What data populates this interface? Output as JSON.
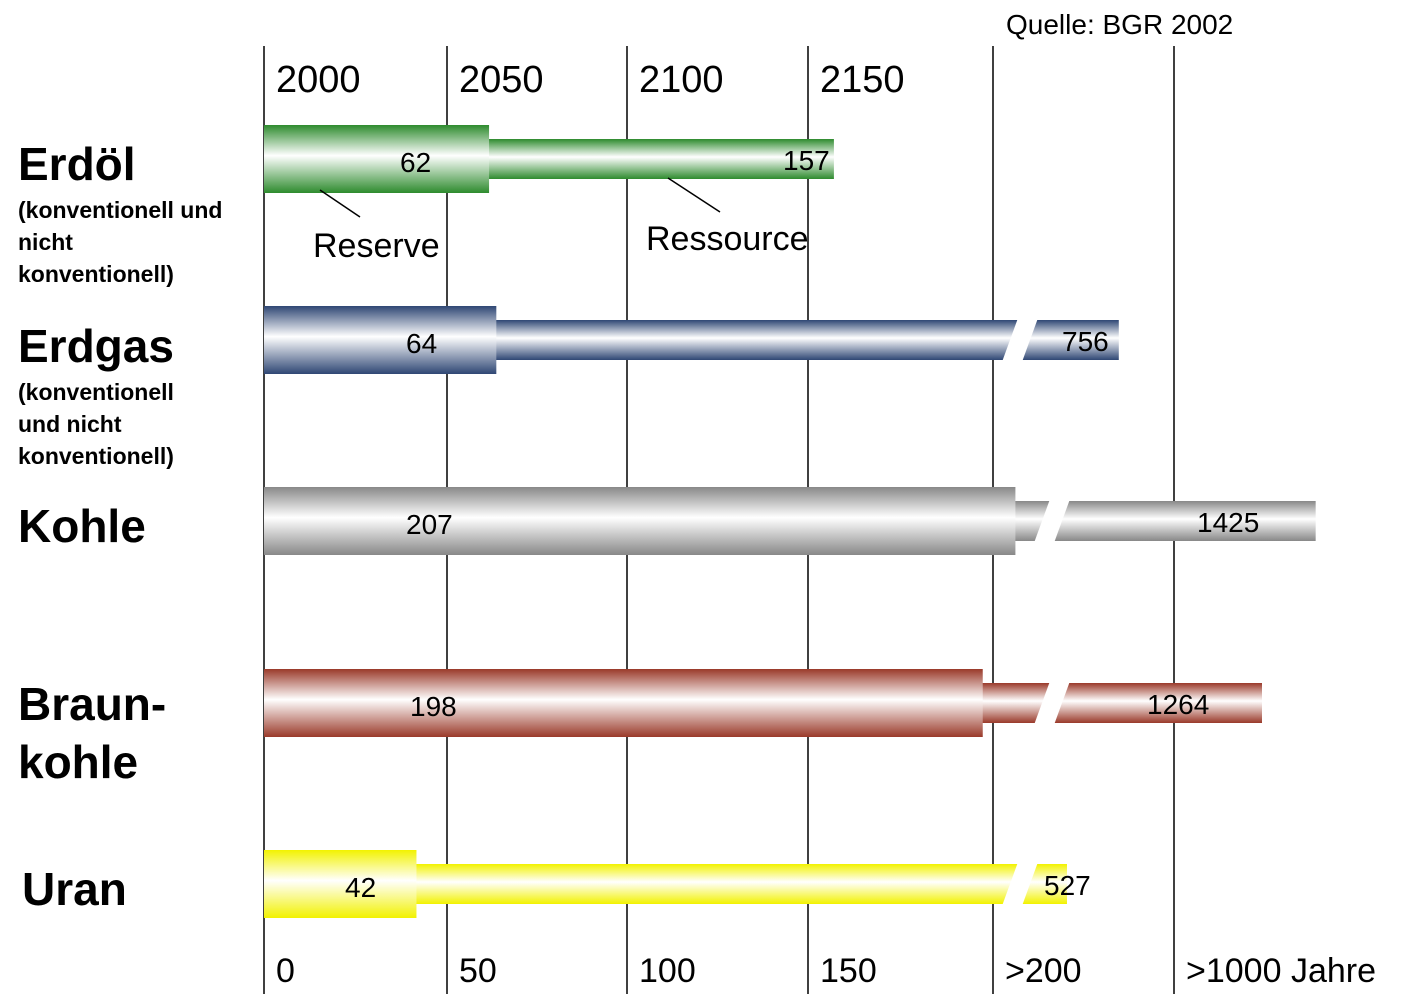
{
  "source": "Quelle: BGR 2002",
  "chart_data": {
    "type": "bar",
    "orientation": "horizontal",
    "top_axis_labels": [
      "2000",
      "2050",
      "2100",
      "2150"
    ],
    "bottom_axis_labels": [
      "0",
      "50",
      "100",
      "150",
      ">200",
      ">1000 Jahre"
    ],
    "categories": [
      {
        "name": "Erdöl",
        "subtitle": [
          "(konventionell und",
          "nicht",
          "konventionell)"
        ],
        "reserve": 62,
        "resource": 157,
        "color": "#2e8b2e"
      },
      {
        "name": "Erdgas",
        "subtitle": [
          "(konventionell",
          "und nicht",
          "konventionell)"
        ],
        "reserve": 64,
        "resource": 756,
        "color": "#2f4774"
      },
      {
        "name": "Kohle",
        "subtitle": [],
        "reserve": 207,
        "resource": 1425,
        "color": "#888888"
      },
      {
        "name": "Braun-",
        "name2": "kohle",
        "subtitle": [],
        "reserve": 198,
        "resource": 1264,
        "color": "#9a3a2a"
      },
      {
        "name": "Uran",
        "subtitle": [],
        "reserve": 42,
        "resource": 527,
        "color": "#f2f200"
      }
    ],
    "annotations": {
      "reserve": "Reserve",
      "resource": "Ressource"
    }
  }
}
